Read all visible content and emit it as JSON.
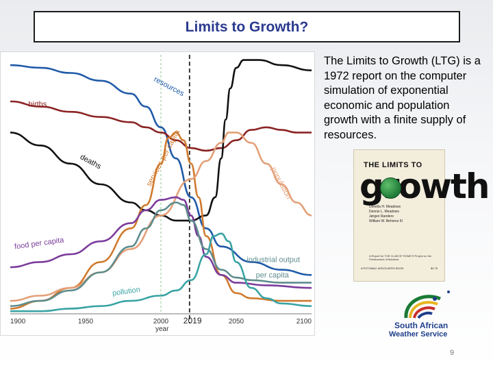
{
  "slide": {
    "title": "Limits to Growth?",
    "description": "The Limits to Growth (LTG) is a 1972 report on the computer simulation of exponential economic and population growth with a finite supply of resources.",
    "page_number": "9"
  },
  "book": {
    "title_top": "THE LIMITS TO",
    "title_main": "growth",
    "authors": [
      "Donella H. Meadows",
      "Dennis L. Meadows",
      "Jørgen Randers",
      "William W. Behrens III"
    ],
    "note": "A Report for THE CLUB OF ROME'S Project on the Predicament of Mankind",
    "publisher": "A POTOMAC ASSOCIATES BOOK",
    "price": "$2.75"
  },
  "logo": {
    "line1": "South African",
    "line2": "Weather Service"
  },
  "chart_data": {
    "type": "line",
    "title": "",
    "xlabel": "year",
    "ylabel": "",
    "xlim": [
      1900,
      2100
    ],
    "ylim": [
      0,
      1
    ],
    "x_ticks": [
      1900,
      1950,
      2000,
      2050,
      2100
    ],
    "marker_label": "2019",
    "vlines": [
      2019,
      2000
    ],
    "series": [
      {
        "name": "resources",
        "color": "#1f5aa8",
        "points": [
          [
            1900,
            0.96
          ],
          [
            1920,
            0.95
          ],
          [
            1940,
            0.93
          ],
          [
            1960,
            0.9
          ],
          [
            1980,
            0.85
          ],
          [
            1990,
            0.8
          ],
          [
            2000,
            0.72
          ],
          [
            2010,
            0.6
          ],
          [
            2020,
            0.45
          ],
          [
            2030,
            0.33
          ],
          [
            2040,
            0.26
          ],
          [
            2060,
            0.2
          ],
          [
            2080,
            0.17
          ],
          [
            2100,
            0.15
          ]
        ]
      },
      {
        "name": "births",
        "color": "#8b2323",
        "points": [
          [
            1900,
            0.82
          ],
          [
            1920,
            0.8
          ],
          [
            1940,
            0.78
          ],
          [
            1960,
            0.76
          ],
          [
            1980,
            0.74
          ],
          [
            1990,
            0.72
          ],
          [
            2000,
            0.7
          ],
          [
            2010,
            0.67
          ],
          [
            2020,
            0.64
          ],
          [
            2030,
            0.63
          ],
          [
            2040,
            0.64
          ],
          [
            2050,
            0.67
          ],
          [
            2060,
            0.71
          ],
          [
            2070,
            0.72
          ],
          [
            2080,
            0.71
          ],
          [
            2090,
            0.7
          ],
          [
            2100,
            0.7
          ]
        ]
      },
      {
        "name": "deaths",
        "color": "#111111",
        "points": [
          [
            1900,
            0.7
          ],
          [
            1920,
            0.65
          ],
          [
            1940,
            0.58
          ],
          [
            1960,
            0.5
          ],
          [
            1980,
            0.43
          ],
          [
            1990,
            0.4
          ],
          [
            2000,
            0.38
          ],
          [
            2010,
            0.36
          ],
          [
            2020,
            0.36
          ],
          [
            2030,
            0.38
          ],
          [
            2036,
            0.45
          ],
          [
            2040,
            0.6
          ],
          [
            2043,
            0.75
          ],
          [
            2046,
            0.87
          ],
          [
            2050,
            0.95
          ],
          [
            2055,
            0.98
          ],
          [
            2065,
            0.98
          ],
          [
            2080,
            0.96
          ],
          [
            2100,
            0.94
          ]
        ]
      },
      {
        "name": "services per capita",
        "color": "#d07a2e",
        "points": [
          [
            1900,
            0.02
          ],
          [
            1920,
            0.05
          ],
          [
            1940,
            0.1
          ],
          [
            1960,
            0.2
          ],
          [
            1980,
            0.33
          ],
          [
            1990,
            0.42
          ],
          [
            2000,
            0.58
          ],
          [
            2005,
            0.68
          ],
          [
            2010,
            0.7
          ],
          [
            2015,
            0.67
          ],
          [
            2020,
            0.58
          ],
          [
            2025,
            0.45
          ],
          [
            2030,
            0.3
          ],
          [
            2040,
            0.15
          ],
          [
            2050,
            0.08
          ],
          [
            2060,
            0.06
          ],
          [
            2080,
            0.05
          ],
          [
            2100,
            0.05
          ]
        ]
      },
      {
        "name": "population",
        "color": "#e3a078",
        "points": [
          [
            1900,
            0.05
          ],
          [
            1920,
            0.07
          ],
          [
            1940,
            0.1
          ],
          [
            1960,
            0.16
          ],
          [
            1980,
            0.25
          ],
          [
            2000,
            0.38
          ],
          [
            2020,
            0.52
          ],
          [
            2030,
            0.59
          ],
          [
            2040,
            0.66
          ],
          [
            2045,
            0.7
          ],
          [
            2050,
            0.7
          ],
          [
            2060,
            0.66
          ],
          [
            2070,
            0.58
          ],
          [
            2080,
            0.5
          ],
          [
            2090,
            0.43
          ],
          [
            2100,
            0.38
          ]
        ]
      },
      {
        "name": "food per capita",
        "color": "#7a3c9b",
        "points": [
          [
            1900,
            0.18
          ],
          [
            1920,
            0.2
          ],
          [
            1940,
            0.23
          ],
          [
            1960,
            0.28
          ],
          [
            1980,
            0.35
          ],
          [
            1990,
            0.4
          ],
          [
            2000,
            0.44
          ],
          [
            2010,
            0.45
          ],
          [
            2015,
            0.44
          ],
          [
            2020,
            0.38
          ],
          [
            2025,
            0.3
          ],
          [
            2030,
            0.22
          ],
          [
            2040,
            0.15
          ],
          [
            2050,
            0.12
          ],
          [
            2070,
            0.11
          ],
          [
            2100,
            0.1
          ]
        ]
      },
      {
        "name": "industrial output per capita",
        "color": "#5e8c8c",
        "points": [
          [
            1900,
            0.03
          ],
          [
            1920,
            0.05
          ],
          [
            1940,
            0.09
          ],
          [
            1960,
            0.16
          ],
          [
            1980,
            0.26
          ],
          [
            1990,
            0.33
          ],
          [
            2000,
            0.4
          ],
          [
            2010,
            0.43
          ],
          [
            2015,
            0.42
          ],
          [
            2020,
            0.36
          ],
          [
            2030,
            0.25
          ],
          [
            2040,
            0.17
          ],
          [
            2050,
            0.14
          ],
          [
            2060,
            0.13
          ],
          [
            2080,
            0.12
          ],
          [
            2100,
            0.12
          ]
        ]
      },
      {
        "name": "pollution",
        "color": "#3aa3a3",
        "points": [
          [
            1900,
            0.01
          ],
          [
            1920,
            0.01
          ],
          [
            1940,
            0.02
          ],
          [
            1960,
            0.03
          ],
          [
            1980,
            0.05
          ],
          [
            2000,
            0.07
          ],
          [
            2010,
            0.09
          ],
          [
            2020,
            0.13
          ],
          [
            2030,
            0.23
          ],
          [
            2035,
            0.3
          ],
          [
            2040,
            0.31
          ],
          [
            2045,
            0.28
          ],
          [
            2050,
            0.2
          ],
          [
            2060,
            0.1
          ],
          [
            2070,
            0.06
          ],
          [
            2080,
            0.04
          ],
          [
            2100,
            0.03
          ]
        ]
      }
    ],
    "annotations": [
      {
        "text": "resources",
        "x": 1995,
        "y": 0.9,
        "angle": 28,
        "series": "resources"
      },
      {
        "text": "births",
        "x": 1912,
        "y": 0.8,
        "angle": 0,
        "series": "births"
      },
      {
        "text": "deaths",
        "x": 1946,
        "y": 0.6,
        "angle": 28,
        "series": "deaths"
      },
      {
        "text": "services per capita",
        "x": 1993,
        "y": 0.49,
        "angle": -62,
        "series": "services per capita"
      },
      {
        "text": "population",
        "x": 2073,
        "y": 0.56,
        "angle": 62,
        "series": "population"
      },
      {
        "text": "food per capita",
        "x": 1903,
        "y": 0.25,
        "angle": -8,
        "series": "food per capita"
      },
      {
        "text": "industrial output",
        "x": 2057,
        "y": 0.2,
        "angle": 0,
        "series": "industrial output per capita"
      },
      {
        "text": "per capita",
        "x": 2063,
        "y": 0.14,
        "angle": 0,
        "series": "industrial output per capita"
      },
      {
        "text": "pollution",
        "x": 1968,
        "y": 0.07,
        "angle": -8,
        "series": "pollution"
      }
    ]
  }
}
